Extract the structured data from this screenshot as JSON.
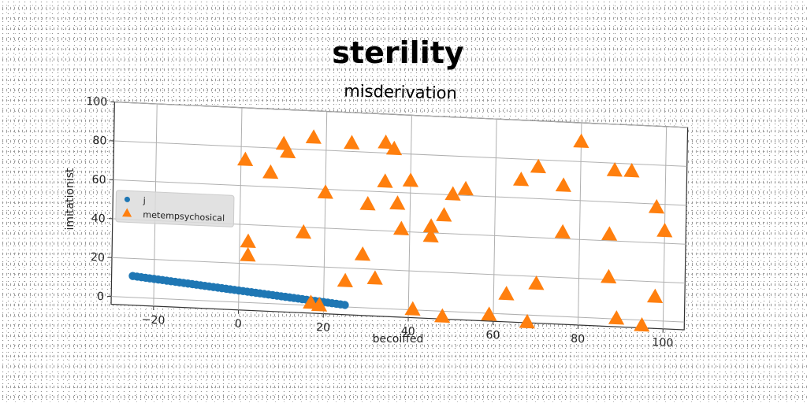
{
  "chart_data": {
    "type": "scatter",
    "title": "sterility",
    "subtitle": "misderivation",
    "xlabel": "becoiffed",
    "ylabel": "imitationist",
    "xlim": [
      -30,
      105
    ],
    "ylim": [
      -4,
      100
    ],
    "xticks": [
      -20,
      0,
      20,
      40,
      60,
      80,
      100
    ],
    "yticks": [
      0,
      20,
      40,
      60,
      80,
      100
    ],
    "grid": true,
    "legend_position": "center-left",
    "series": [
      {
        "name": "j",
        "marker": "circle",
        "color": "#1f77b4",
        "points": [
          [
            -25,
            11
          ],
          [
            -24,
            10.8
          ],
          [
            -23,
            10.6
          ],
          [
            -22,
            10.4
          ],
          [
            -21,
            10.2
          ],
          [
            -20,
            10.0
          ],
          [
            -19,
            9.8
          ],
          [
            -18,
            9.6
          ],
          [
            -17,
            9.4
          ],
          [
            -16,
            9.2
          ],
          [
            -15,
            9.0
          ],
          [
            -14,
            8.8
          ],
          [
            -13,
            8.6
          ],
          [
            -12,
            8.4
          ],
          [
            -11,
            8.2
          ],
          [
            -10,
            8.0
          ],
          [
            -9,
            7.8
          ],
          [
            -8,
            7.6
          ],
          [
            -7,
            7.4
          ],
          [
            -6,
            7.2
          ],
          [
            -5,
            7.0
          ],
          [
            -4,
            6.8
          ],
          [
            -3,
            6.6
          ],
          [
            -2,
            6.4
          ],
          [
            -1,
            6.2
          ],
          [
            0,
            6.0
          ],
          [
            1,
            5.8
          ],
          [
            2,
            5.6
          ],
          [
            3,
            5.4
          ],
          [
            4,
            5.2
          ],
          [
            5,
            5.0
          ],
          [
            6,
            4.8
          ],
          [
            7,
            4.6
          ],
          [
            8,
            4.4
          ],
          [
            9,
            4.2
          ],
          [
            10,
            4.0
          ],
          [
            11,
            3.8
          ],
          [
            12,
            3.6
          ],
          [
            13,
            3.4
          ],
          [
            14,
            3.2
          ],
          [
            15,
            3.0
          ],
          [
            16,
            2.8
          ],
          [
            17,
            2.6
          ],
          [
            18,
            2.4
          ],
          [
            19,
            2.2
          ],
          [
            20,
            2.0
          ],
          [
            21,
            1.8
          ],
          [
            22,
            1.6
          ],
          [
            23,
            1.4
          ],
          [
            24,
            1.2
          ],
          [
            25,
            1.0
          ]
        ]
      },
      {
        "name": "metempsychosical",
        "marker": "triangle",
        "color": "#ff7f0e",
        "points": [
          [
            1,
            73
          ],
          [
            2,
            31
          ],
          [
            2,
            24
          ],
          [
            7,
            67
          ],
          [
            10,
            82
          ],
          [
            11,
            78
          ],
          [
            15,
            37
          ],
          [
            17,
            86
          ],
          [
            17,
            1
          ],
          [
            19,
            0
          ],
          [
            20,
            58
          ],
          [
            25,
            13
          ],
          [
            26,
            84
          ],
          [
            29,
            27
          ],
          [
            30,
            53
          ],
          [
            32,
            15
          ],
          [
            34,
            65
          ],
          [
            34,
            85
          ],
          [
            36,
            82
          ],
          [
            37,
            54
          ],
          [
            38,
            41
          ],
          [
            40,
            66
          ],
          [
            41,
            0
          ],
          [
            45,
            38
          ],
          [
            45,
            43
          ],
          [
            48,
            49
          ],
          [
            48,
            -3
          ],
          [
            50,
            60
          ],
          [
            53,
            63
          ],
          [
            59,
            -1
          ],
          [
            63,
            10
          ],
          [
            66,
            69
          ],
          [
            68,
            -4
          ],
          [
            70,
            16
          ],
          [
            70,
            76
          ],
          [
            76,
            67
          ],
          [
            76,
            43
          ],
          [
            80,
            90
          ],
          [
            87,
            43
          ],
          [
            87,
            21
          ],
          [
            88,
            76
          ],
          [
            89,
            0
          ],
          [
            92,
            76
          ],
          [
            95,
            -3
          ],
          [
            98,
            58
          ],
          [
            98,
            12
          ],
          [
            100,
            46
          ]
        ]
      }
    ]
  }
}
